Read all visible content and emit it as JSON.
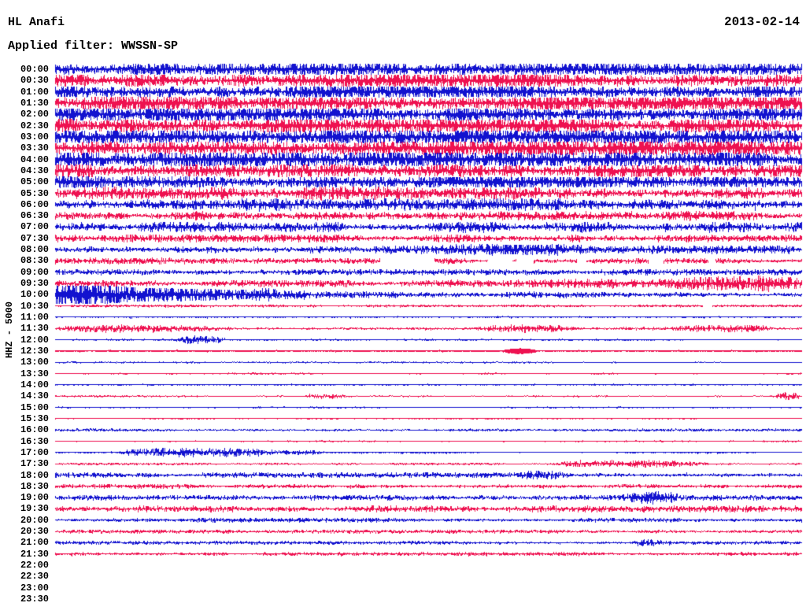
{
  "header": {
    "station": "HL Anafi",
    "date": "2013-02-14",
    "filter": "Applied filter: WWSSN-SP"
  },
  "axis": {
    "left_label": "HHZ - 5000"
  },
  "colors": {
    "trace_blue": "#1212cf",
    "trace_red": "#ee1150",
    "text": "#000000",
    "background": "#ffffff"
  },
  "chart_data": {
    "type": "line",
    "title": "HL Anafi helicorder, 2013-02-14, HHZ, filter WWSSN-SP",
    "ylabel": "HHZ - 5000",
    "minutes_per_line": 30,
    "legend_position": "none",
    "grid": false,
    "trace_color_cycle": [
      "blue",
      "red"
    ],
    "rows": [
      {
        "t": "00:00",
        "c": "blue",
        "env": [
          [
            0,
            3.8
          ],
          [
            0.08,
            4.6
          ],
          [
            1,
            4.6
          ]
        ]
      },
      {
        "t": "00:30",
        "c": "red",
        "env": [
          [
            0,
            5.0
          ],
          [
            1,
            5.0
          ]
        ]
      },
      {
        "t": "01:00",
        "c": "blue",
        "env": [
          [
            0,
            4.6
          ],
          [
            1,
            4.6
          ]
        ]
      },
      {
        "t": "01:30",
        "c": "red",
        "env": [
          [
            0,
            5.2
          ],
          [
            1,
            5.0
          ]
        ]
      },
      {
        "t": "02:00",
        "c": "blue",
        "env": [
          [
            0,
            5.2
          ],
          [
            1,
            5.2
          ]
        ]
      },
      {
        "t": "02:30",
        "c": "red",
        "env": [
          [
            0,
            5.6
          ],
          [
            1,
            5.4
          ]
        ]
      },
      {
        "t": "03:00",
        "c": "blue",
        "env": [
          [
            0,
            5.2
          ],
          [
            1,
            5.2
          ]
        ]
      },
      {
        "t": "03:30",
        "c": "red",
        "env": [
          [
            0,
            5.6
          ],
          [
            1,
            5.6
          ]
        ]
      },
      {
        "t": "04:00",
        "c": "blue",
        "env": [
          [
            0,
            5.6
          ],
          [
            1,
            5.6
          ]
        ]
      },
      {
        "t": "04:30",
        "c": "red",
        "env": [
          [
            0,
            5.2
          ],
          [
            1,
            5.0
          ]
        ]
      },
      {
        "t": "05:00",
        "c": "blue",
        "env": [
          [
            0,
            4.8
          ],
          [
            1,
            4.2
          ]
        ]
      },
      {
        "t": "05:30",
        "c": "red",
        "env": [
          [
            0,
            3.8
          ],
          [
            1,
            3.6
          ]
        ]
      },
      {
        "t": "06:00",
        "c": "blue",
        "env": [
          [
            0,
            3.6
          ],
          [
            1,
            3.6
          ]
        ]
      },
      {
        "t": "06:30",
        "c": "red",
        "env": [
          [
            0,
            2.6
          ],
          [
            1,
            2.6
          ]
        ]
      },
      {
        "t": "07:00",
        "c": "blue",
        "env": [
          [
            0,
            3.0
          ],
          [
            1,
            3.0
          ]
        ]
      },
      {
        "t": "07:30",
        "c": "red",
        "env": [
          [
            0,
            2.3
          ],
          [
            1,
            2.3
          ]
        ]
      },
      {
        "t": "08:00",
        "c": "blue",
        "env": [
          [
            0,
            2.3
          ],
          [
            0.5,
            2.3
          ],
          [
            0.56,
            3.4
          ],
          [
            0.63,
            4.4
          ],
          [
            0.72,
            3.2
          ],
          [
            0.8,
            2.3
          ],
          [
            1,
            2.3
          ]
        ]
      },
      {
        "t": "08:30",
        "c": "red",
        "env": [
          [
            0,
            1.8
          ],
          [
            1,
            1.5
          ]
        ],
        "gaps": [
          [
            0.435,
            0.508
          ],
          [
            0.58,
            0.612
          ],
          [
            0.618,
            0.641
          ],
          [
            0.699,
            0.712
          ],
          [
            0.795,
            0.815
          ],
          [
            0.875,
            0.885
          ]
        ]
      },
      {
        "t": "09:00",
        "c": "blue",
        "env": [
          [
            0,
            1.6
          ],
          [
            1,
            1.8
          ]
        ]
      },
      {
        "t": "09:30",
        "c": "red",
        "env": [
          [
            0,
            1.8
          ],
          [
            0.5,
            2.0
          ],
          [
            0.7,
            2.5
          ],
          [
            0.8,
            3.5
          ],
          [
            0.88,
            6.0
          ],
          [
            0.93,
            8.0
          ],
          [
            0.97,
            7.0
          ],
          [
            1,
            4.5
          ]
        ]
      },
      {
        "t": "10:00",
        "c": "blue",
        "env": [
          [
            0,
            9.0
          ],
          [
            0.02,
            11.0
          ],
          [
            0.06,
            8.0
          ],
          [
            0.12,
            6.0
          ],
          [
            0.2,
            5.0
          ],
          [
            0.3,
            3.5
          ],
          [
            0.45,
            2.5
          ],
          [
            0.6,
            1.8
          ],
          [
            0.8,
            1.5
          ],
          [
            1,
            1.4
          ]
        ]
      },
      {
        "t": "10:30",
        "c": "red",
        "env": [
          [
            0,
            0.8
          ],
          [
            1,
            0.8
          ]
        ],
        "gaps": [
          [
            0.868,
            0.88
          ]
        ]
      },
      {
        "t": "11:00",
        "c": "blue",
        "env": [
          [
            0,
            0.7
          ],
          [
            1,
            0.7
          ]
        ],
        "smooth": true
      },
      {
        "t": "11:30",
        "c": "red",
        "env": [
          [
            0,
            1.0
          ],
          [
            1,
            0.9
          ]
        ],
        "bursts": [
          [
            0.0,
            0.25,
            1.4
          ],
          [
            0.55,
            0.7,
            1.5
          ],
          [
            0.82,
            0.98,
            1.2
          ]
        ]
      },
      {
        "t": "12:00",
        "c": "blue",
        "env": [
          [
            0,
            0.55
          ],
          [
            1,
            0.55
          ]
        ],
        "bursts": [
          [
            0.16,
            0.23,
            2.0
          ]
        ]
      },
      {
        "t": "12:30",
        "c": "red",
        "env": [
          [
            0,
            0.8
          ],
          [
            1,
            0.8
          ]
        ],
        "smooth": true,
        "bursts": [
          [
            0.6,
            0.645,
            2.6
          ]
        ]
      },
      {
        "t": "13:00",
        "c": "blue",
        "env": [
          [
            0,
            0.5
          ],
          [
            1,
            0.5
          ]
        ]
      },
      {
        "t": "13:30",
        "c": "red",
        "env": [
          [
            0,
            0.6
          ],
          [
            1,
            0.6
          ]
        ]
      },
      {
        "t": "14:00",
        "c": "blue",
        "env": [
          [
            0,
            0.7
          ],
          [
            1,
            0.7
          ]
        ],
        "smooth": true
      },
      {
        "t": "14:30",
        "c": "red",
        "env": [
          [
            0,
            0.6
          ],
          [
            1,
            0.6
          ]
        ],
        "bursts": [
          [
            0.33,
            0.39,
            1.5
          ],
          [
            0.965,
            1.0,
            1.8
          ]
        ]
      },
      {
        "t": "15:00",
        "c": "blue",
        "env": [
          [
            0,
            0.5
          ],
          [
            1,
            0.5
          ]
        ]
      },
      {
        "t": "15:30",
        "c": "red",
        "env": [
          [
            0,
            0.5
          ],
          [
            1,
            0.5
          ]
        ]
      },
      {
        "t": "16:00",
        "c": "blue",
        "env": [
          [
            0,
            0.8
          ],
          [
            1,
            0.8
          ]
        ]
      },
      {
        "t": "16:30",
        "c": "red",
        "env": [
          [
            0,
            0.5
          ],
          [
            1,
            0.5
          ]
        ]
      },
      {
        "t": "17:00",
        "c": "blue",
        "env": [
          [
            0,
            0.6
          ],
          [
            1,
            0.6
          ]
        ],
        "bursts": [
          [
            0.07,
            0.36,
            2.4
          ]
        ]
      },
      {
        "t": "17:30",
        "c": "red",
        "env": [
          [
            0,
            0.7
          ],
          [
            1,
            0.7
          ]
        ],
        "bursts": [
          [
            0.67,
            0.88,
            2.8
          ]
        ]
      },
      {
        "t": "18:00",
        "c": "blue",
        "env": [
          [
            0,
            1.6
          ],
          [
            1,
            1.4
          ]
        ],
        "bursts": [
          [
            0.62,
            0.69,
            1.6
          ]
        ]
      },
      {
        "t": "18:30",
        "c": "red",
        "env": [
          [
            0,
            1.4
          ],
          [
            1,
            1.4
          ]
        ]
      },
      {
        "t": "19:00",
        "c": "blue",
        "env": [
          [
            0,
            1.5
          ],
          [
            1,
            1.6
          ]
        ],
        "bursts": [
          [
            0.76,
            0.84,
            2.2
          ]
        ]
      },
      {
        "t": "19:30",
        "c": "red",
        "env": [
          [
            0,
            1.9
          ],
          [
            1,
            1.8
          ]
        ]
      },
      {
        "t": "20:00",
        "c": "blue",
        "env": [
          [
            0,
            1.3
          ],
          [
            1,
            1.3
          ]
        ]
      },
      {
        "t": "20:30",
        "c": "red",
        "env": [
          [
            0,
            1.1
          ],
          [
            1,
            1.1
          ]
        ]
      },
      {
        "t": "21:00",
        "c": "blue",
        "env": [
          [
            0,
            1.0
          ],
          [
            1,
            1.0
          ]
        ],
        "bursts": [
          [
            0.77,
            0.83,
            1.6
          ]
        ]
      },
      {
        "t": "21:30",
        "c": "red",
        "env": [
          [
            0,
            1.1
          ],
          [
            1,
            1.1
          ]
        ]
      },
      {
        "t": "22:00",
        "c": "blue",
        "present": false
      },
      {
        "t": "22:30",
        "c": "red",
        "present": false
      },
      {
        "t": "23:00",
        "c": "blue",
        "present": false
      },
      {
        "t": "23:30",
        "c": "red",
        "present": false
      }
    ]
  }
}
